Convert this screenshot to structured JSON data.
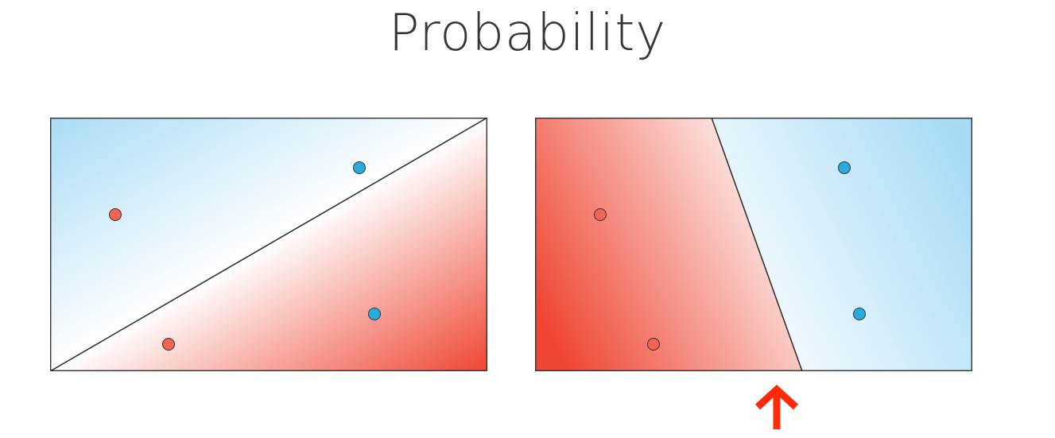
{
  "title": "Probability",
  "colors": {
    "red_region": "#f05a48",
    "blue_region": "#a8dcf5",
    "red_point": "#f06454",
    "blue_point": "#29abe2",
    "boundary": "#333333",
    "arrow": "#ff2a0a",
    "title_text": "#3b3634"
  },
  "panels": [
    {
      "id": "left",
      "boundary": "diagonal",
      "points": [
        {
          "class": "red"
        },
        {
          "class": "red"
        },
        {
          "class": "blue"
        },
        {
          "class": "blue"
        }
      ]
    },
    {
      "id": "right",
      "boundary": "steep",
      "points": [
        {
          "class": "red"
        },
        {
          "class": "red"
        },
        {
          "class": "blue"
        },
        {
          "class": "blue"
        }
      ]
    }
  ],
  "indicator": {
    "icon": "up-arrow-icon"
  }
}
